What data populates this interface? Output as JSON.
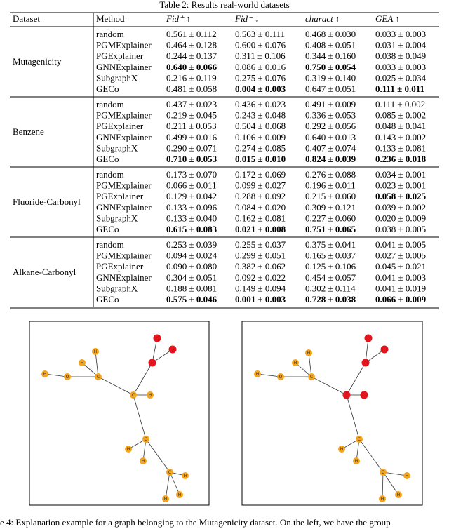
{
  "table": {
    "title": "Table 2: Results real-world datasets",
    "header": [
      "Dataset",
      "Method",
      "Fid⁺ ↑",
      "Fid⁻ ↓",
      "charact ↑",
      "GEA ↑"
    ],
    "groups": [
      {
        "dataset": "Mutagenicity",
        "rows": [
          {
            "method": "random",
            "cells": [
              "0.561 ± 0.112",
              "0.563 ± 0.111",
              "0.468 ± 0.030",
              "0.033 ± 0.003"
            ],
            "bold": []
          },
          {
            "method": "PGMExplainer",
            "cells": [
              "0.464 ± 0.128",
              "0.600 ± 0.076",
              "0.408 ± 0.051",
              "0.031 ± 0.004"
            ],
            "bold": []
          },
          {
            "method": "PGExplainer",
            "cells": [
              "0.244 ± 0.137",
              "0.311 ± 0.106",
              "0.344 ± 0.160",
              "0.038 ± 0.049"
            ],
            "bold": []
          },
          {
            "method": "GNNExplainer",
            "cells": [
              "0.640 ± 0.066",
              "0.086 ± 0.016",
              "0.750 ± 0.054",
              "0.033 ± 0.003"
            ],
            "bold": [
              0,
              2
            ]
          },
          {
            "method": "SubgraphX",
            "cells": [
              "0.216 ± 0.119",
              "0.275 ± 0.076",
              "0.319 ± 0.140",
              "0.025 ± 0.034"
            ],
            "bold": []
          },
          {
            "method": "GECo",
            "cells": [
              "0.481 ± 0.058",
              "0.004 ± 0.003",
              "0.647 ± 0.051",
              "0.111 ± 0.011"
            ],
            "bold": [
              1,
              3
            ]
          }
        ]
      },
      {
        "dataset": "Benzene",
        "rows": [
          {
            "method": "random",
            "cells": [
              "0.437 ± 0.023",
              "0.436 ± 0.023",
              "0.491 ± 0.009",
              "0.111 ± 0.002"
            ],
            "bold": []
          },
          {
            "method": "PGMExplainer",
            "cells": [
              "0.219 ± 0.045",
              "0.243 ± 0.048",
              "0.336 ± 0.053",
              "0.085 ± 0.002"
            ],
            "bold": []
          },
          {
            "method": "PGExplainer",
            "cells": [
              "0.211 ± 0.053",
              "0.504 ± 0.068",
              "0.292 ± 0.056",
              "0.048 ± 0.041"
            ],
            "bold": []
          },
          {
            "method": "GNNExplainer",
            "cells": [
              "0.499 ± 0.016",
              "0.106 ± 0.009",
              "0.640 ± 0.013",
              "0.143 ± 0.002"
            ],
            "bold": []
          },
          {
            "method": "SubgraphX",
            "cells": [
              "0.290 ± 0.071",
              "0.274 ± 0.085",
              "0.407 ± 0.074",
              "0.133 ± 0.081"
            ],
            "bold": []
          },
          {
            "method": "GECo",
            "cells": [
              "0.710 ± 0.053",
              "0.015 ± 0.010",
              "0.824 ± 0.039",
              "0.236 ± 0.018"
            ],
            "bold": [
              0,
              1,
              2,
              3
            ]
          }
        ]
      },
      {
        "dataset": "Fluoride-Carbonyl",
        "rows": [
          {
            "method": "random",
            "cells": [
              "0.173 ± 0.070",
              "0.172 ± 0.069",
              "0.276 ± 0.088",
              "0.034 ± 0.001"
            ],
            "bold": []
          },
          {
            "method": "PGMExplainer",
            "cells": [
              "0.066 ± 0.011",
              "0.099 ± 0.027",
              "0.196 ± 0.011",
              "0.023 ± 0.001"
            ],
            "bold": []
          },
          {
            "method": "PGExplainer",
            "cells": [
              "0.129 ± 0.042",
              "0.288 ± 0.092",
              "0.215 ± 0.060",
              "0.058 ± 0.025"
            ],
            "bold": [
              3
            ]
          },
          {
            "method": "GNNExplainer",
            "cells": [
              "0.133 ± 0.096",
              "0.084 ± 0.020",
              "0.309 ± 0.121",
              "0.039 ± 0.002"
            ],
            "bold": []
          },
          {
            "method": "SubgraphX",
            "cells": [
              "0.133 ± 0.040",
              "0.162 ± 0.081",
              "0.227 ± 0.060",
              "0.020 ± 0.009"
            ],
            "bold": []
          },
          {
            "method": "GECo",
            "cells": [
              "0.615 ± 0.083",
              "0.021 ± 0.008",
              "0.751 ± 0.065",
              "0.038 ± 0.005"
            ],
            "bold": [
              0,
              1,
              2
            ]
          }
        ]
      },
      {
        "dataset": "Alkane-Carbonyl",
        "rows": [
          {
            "method": "random",
            "cells": [
              "0.253 ± 0.039",
              "0.255 ± 0.037",
              "0.375 ± 0.041",
              "0.041 ± 0.005"
            ],
            "bold": []
          },
          {
            "method": "PGMExplainer",
            "cells": [
              "0.094 ± 0.024",
              "0.299 ± 0.051",
              "0.165 ± 0.037",
              "0.027 ± 0.005"
            ],
            "bold": []
          },
          {
            "method": "PGExplainer",
            "cells": [
              "0.090 ± 0.080",
              "0.382 ± 0.062",
              "0.125 ± 0.106",
              "0.045 ± 0.021"
            ],
            "bold": []
          },
          {
            "method": "GNNExplainer",
            "cells": [
              "0.304 ± 0.051",
              "0.092 ± 0.022",
              "0.454 ± 0.057",
              "0.041 ± 0.003"
            ],
            "bold": []
          },
          {
            "method": "SubgraphX",
            "cells": [
              "0.188 ± 0.081",
              "0.149 ± 0.094",
              "0.302 ± 0.114",
              "0.041 ± 0.019"
            ],
            "bold": []
          },
          {
            "method": "GECo",
            "cells": [
              "0.575 ± 0.046",
              "0.001 ± 0.003",
              "0.728 ± 0.038",
              "0.066 ± 0.009"
            ],
            "bold": [
              0,
              1,
              2,
              3
            ]
          }
        ]
      }
    ]
  },
  "figures": [
    {
      "nodes": [
        {
          "label": "H",
          "color": "#f5a31a"
        },
        {
          "label": "O",
          "color": "#f5a31a"
        },
        {
          "label": "C",
          "color": "#f5a31a"
        },
        {
          "label": "H",
          "color": "#f5a31a"
        },
        {
          "label": "H",
          "color": "#f5a31a"
        },
        {
          "label": "C",
          "color": "#f5a31a"
        },
        {
          "color": "#e3141b"
        },
        {
          "color": "#e3141b"
        },
        {
          "color": "#e3141b"
        },
        {
          "label": "H",
          "color": "#f5a31a"
        },
        {
          "label": "C",
          "color": "#f5a31a"
        },
        {
          "label": "H",
          "color": "#f5a31a"
        },
        {
          "label": "H",
          "color": "#f5a31a"
        },
        {
          "label": "C",
          "color": "#f5a31a"
        },
        {
          "label": "H",
          "color": "#f5a31a"
        },
        {
          "label": "H",
          "color": "#f5a31a"
        },
        {
          "label": "H",
          "color": "#f5a31a"
        }
      ]
    },
    {
      "nodes": [
        {
          "label": "H",
          "color": "#f5a31a"
        },
        {
          "label": "O",
          "color": "#f5a31a"
        },
        {
          "label": "C",
          "color": "#f5a31a"
        },
        {
          "label": "H",
          "color": "#f5a31a"
        },
        {
          "label": "H",
          "color": "#f5a31a"
        },
        {
          "color": "#e3141b"
        },
        {
          "color": "#e3141b"
        },
        {
          "color": "#e3141b"
        },
        {
          "color": "#e3141b"
        },
        {
          "color": "#e3141b"
        },
        {
          "label": "C",
          "color": "#f5a31a"
        },
        {
          "label": "H",
          "color": "#f5a31a"
        },
        {
          "label": "H",
          "color": "#f5a31a"
        },
        {
          "label": "C",
          "color": "#f5a31a"
        },
        {
          "label": "H",
          "color": "#f5a31a"
        },
        {
          "label": "H",
          "color": "#f5a31a"
        },
        {
          "label": "H",
          "color": "#f5a31a"
        }
      ]
    }
  ],
  "caption": "e 4: Explanation example for a graph belonging to the Mutagenicity dataset. On the left, we have the group"
}
